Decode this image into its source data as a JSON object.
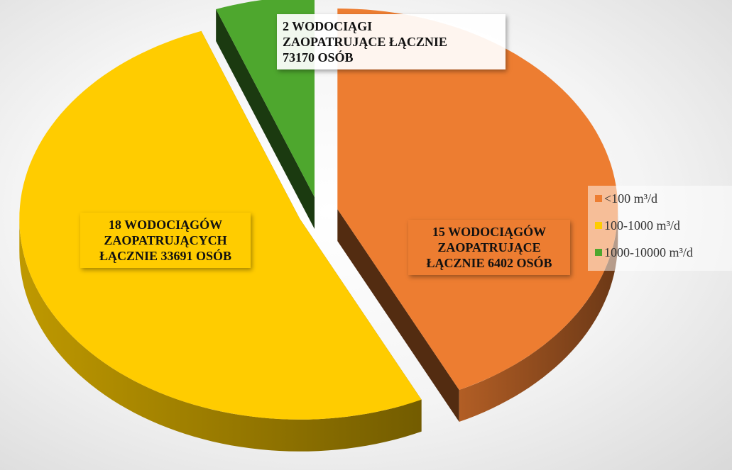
{
  "chart_data": {
    "type": "pie3d",
    "categories": [
      "<100 m³/d",
      "100-1000 m³/d",
      "1000-10000 m³/d"
    ],
    "values": [
      15,
      18,
      2
    ],
    "value_labels": [
      "15 WODOCIĄGÓW\nZAOPATRUJĄCE\nŁĄCZNIE 6402 OSÓB",
      "18 WODOCIĄGÓW\nZAOPATRUJĄCYCH\nŁĄCZNIE 33691 OSÓB",
      "2 WODOCIĄGI\nZAOPATRUJĄCE ŁĄCZNIE\n73170 OSÓB"
    ],
    "colors": [
      "#ED7D31",
      "#FFCC00",
      "#4EA72E"
    ],
    "legend": "right"
  }
}
